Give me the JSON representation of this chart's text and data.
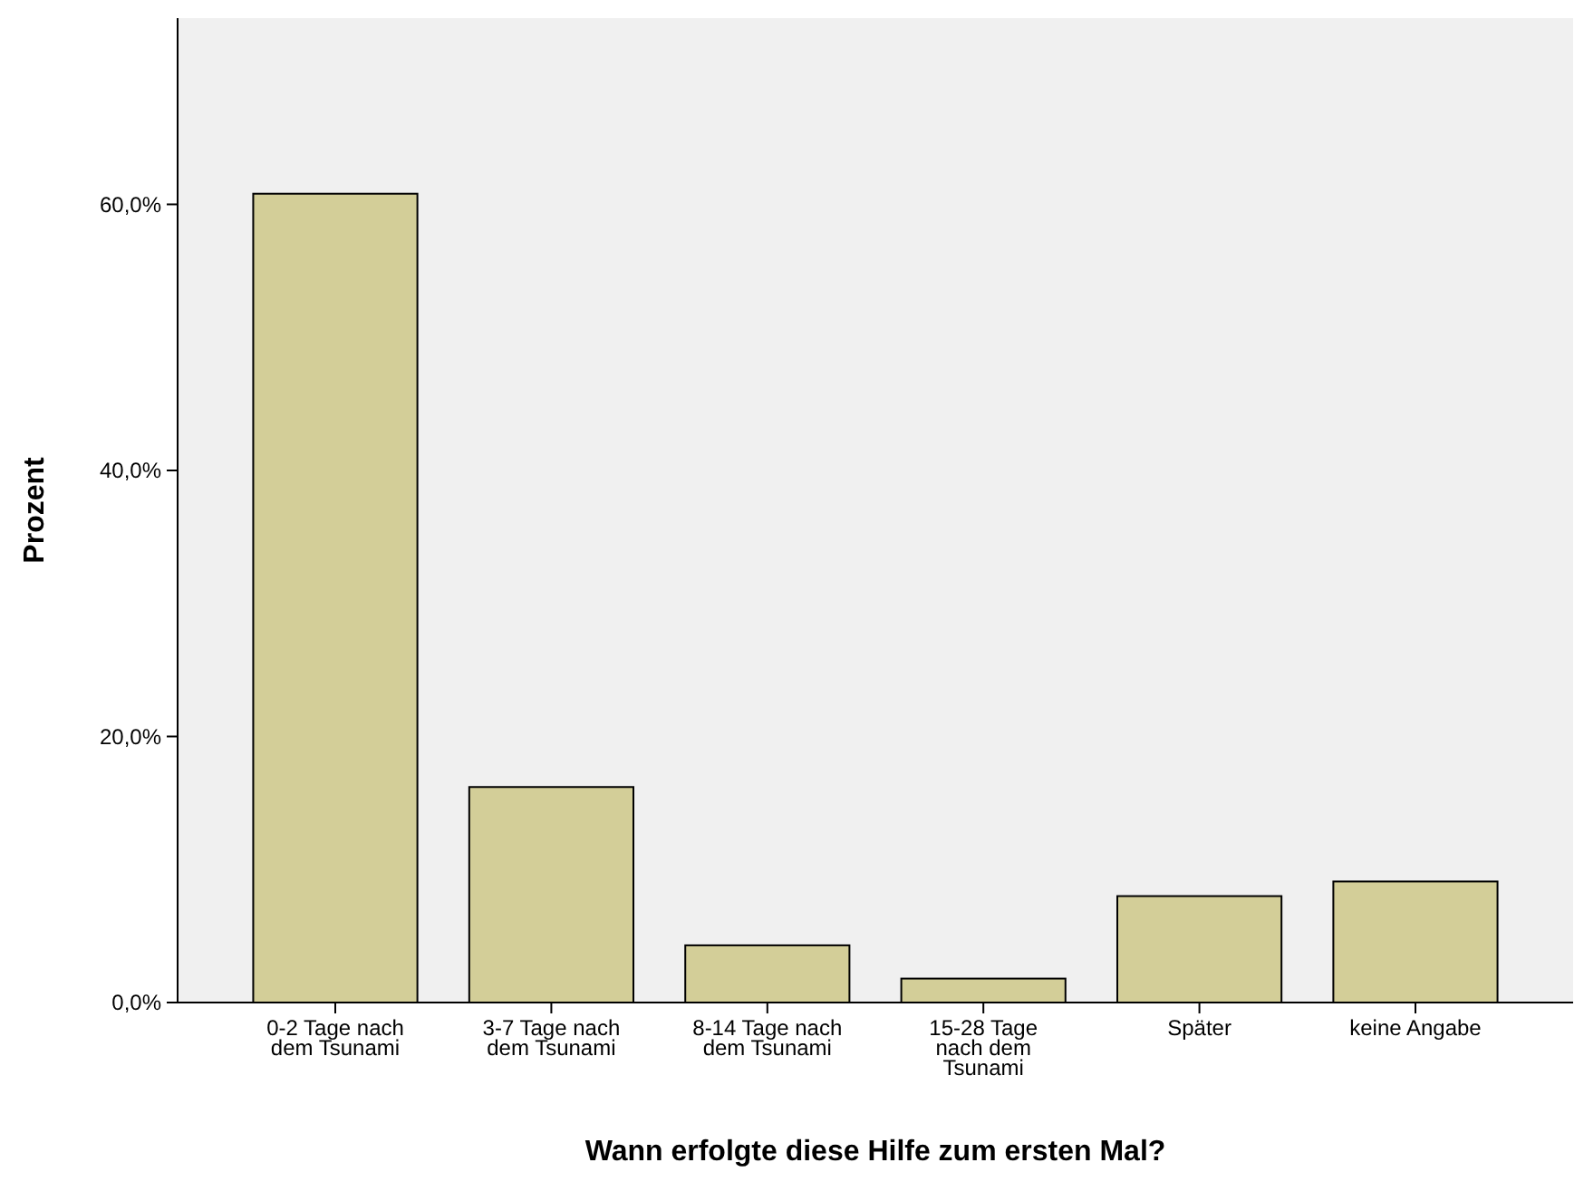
{
  "chart_data": {
    "type": "bar",
    "xlabel": "Wann erfolgte diese Hilfe zum ersten Mal?",
    "ylabel": "Prozent",
    "categories": [
      "0-2 Tage nach dem Tsunami",
      "3-7 Tage nach dem Tsunami",
      "8-14 Tage nach dem Tsunami",
      "15-28 Tage nach dem Tsunami",
      "Später",
      "keine Angabe"
    ],
    "values": [
      60.8,
      16.2,
      4.3,
      1.8,
      8.0,
      9.1
    ],
    "color": "#d3ce98",
    "ylim": [
      0,
      74
    ],
    "yticks": [
      {
        "value": 0,
        "label": "0,0%"
      },
      {
        "value": 20,
        "label": "20,0%"
      },
      {
        "value": 40,
        "label": "40,0%"
      },
      {
        "value": 60,
        "label": "60,0%"
      }
    ],
    "grid": false
  }
}
